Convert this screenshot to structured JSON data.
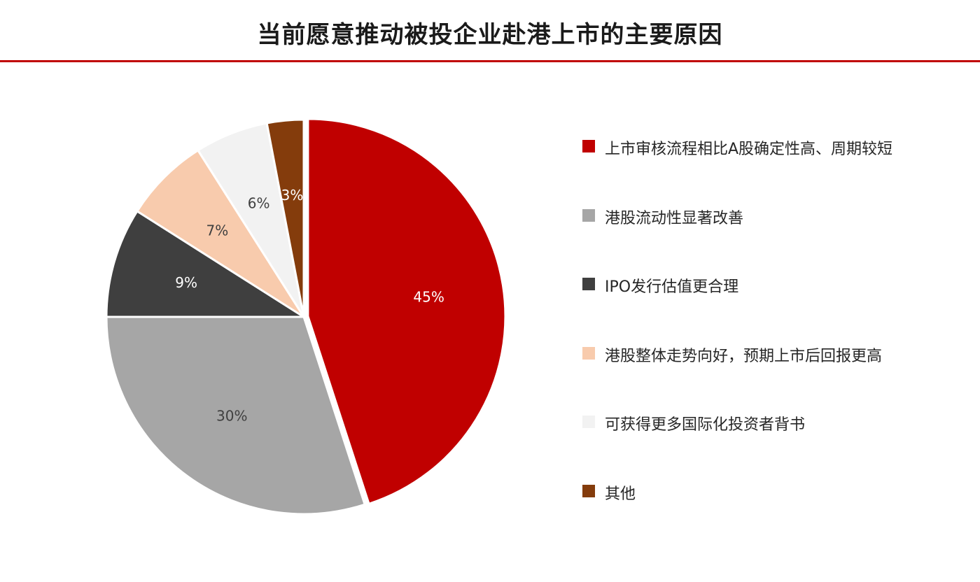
{
  "chart_data": {
    "type": "pie",
    "title": "当前愿意推动被投企业赴港上市的主要原因",
    "legend_position": "right",
    "slices": [
      {
        "label": "上市审核流程相比A股确定性高、周期较短",
        "value": 45,
        "value_label": "45%",
        "color": "#c00000",
        "text_color": "#ffffff",
        "explode": true
      },
      {
        "label": "港股流动性显著改善",
        "value": 30,
        "value_label": "30%",
        "color": "#a6a6a6",
        "text_color": "#404040",
        "explode": false
      },
      {
        "label": "IPO发行估值更合理",
        "value": 9,
        "value_label": "9%",
        "color": "#3f3f3f",
        "text_color": "#ffffff",
        "explode": false
      },
      {
        "label": "港股整体走势向好，预期上市后回报更高",
        "value": 7,
        "value_label": "7%",
        "color": "#f8cbad",
        "text_color": "#404040",
        "explode": false
      },
      {
        "label": "可获得更多国际化投资者背书",
        "value": 6,
        "value_label": "6%",
        "color": "#f2f2f2",
        "text_color": "#404040",
        "explode": false
      },
      {
        "label": "其他",
        "value": 3,
        "value_label": "3%",
        "color": "#843c0c",
        "text_color": "#ffffff",
        "explode": false
      }
    ]
  }
}
